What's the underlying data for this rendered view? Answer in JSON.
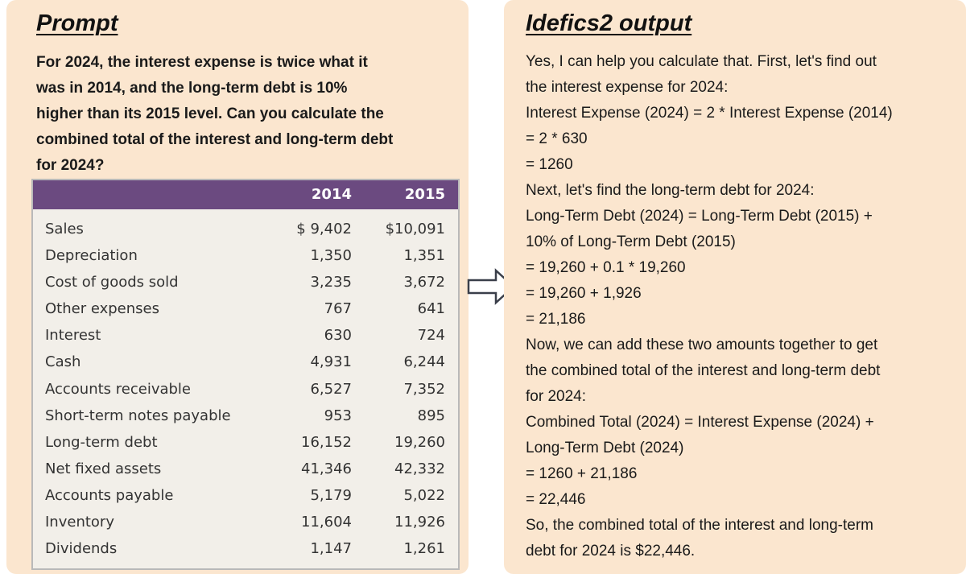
{
  "prompt": {
    "title": "Prompt",
    "lines": [
      "For 2024, the interest expense is twice what it",
      "was in 2014, and the long-term debt is 10%",
      "higher than its 2015 level. Can you calculate the",
      "combined total of the interest and long-term debt",
      "for 2024?"
    ]
  },
  "table": {
    "header_color": "#6b4a80",
    "columns": [
      "2014",
      "2015"
    ],
    "rows": [
      {
        "label": "Sales",
        "v2014": "$ 9,402",
        "v2015": "$10,091"
      },
      {
        "label": "Depreciation",
        "v2014": "1,350",
        "v2015": "1,351"
      },
      {
        "label": "Cost of goods sold",
        "v2014": "3,235",
        "v2015": "3,672"
      },
      {
        "label": "Other expenses",
        "v2014": "767",
        "v2015": "641"
      },
      {
        "label": "Interest",
        "v2014": "630",
        "v2015": "724"
      },
      {
        "label": "Cash",
        "v2014": "4,931",
        "v2015": "6,244"
      },
      {
        "label": "Accounts receivable",
        "v2014": "6,527",
        "v2015": "7,352"
      },
      {
        "label": "Short-term notes payable",
        "v2014": "953",
        "v2015": "895"
      },
      {
        "label": "Long-term debt",
        "v2014": "16,152",
        "v2015": "19,260"
      },
      {
        "label": "Net fixed assets",
        "v2014": "41,346",
        "v2015": "42,332"
      },
      {
        "label": "Accounts payable",
        "v2014": "5,179",
        "v2015": "5,022"
      },
      {
        "label": "Inventory",
        "v2014": "11,604",
        "v2015": "11,926"
      },
      {
        "label": "Dividends",
        "v2014": "1,147",
        "v2015": "1,261"
      }
    ]
  },
  "arrow": {
    "icon": "right-arrow-icon"
  },
  "output": {
    "title": "Idefics2 output",
    "lines": [
      "Yes, I can help you calculate that. First, let's find out",
      "the interest expense for 2024:",
      "Interest Expense (2024) = 2 * Interest Expense (2014)",
      "= 2 * 630",
      "= 1260",
      "Next, let's find the long-term debt for 2024:",
      "Long-Term Debt (2024) = Long-Term Debt (2015) +",
      "10% of Long-Term Debt (2015)",
      "= 19,260 + 0.1 * 19,260",
      "= 19,260 + 1,926",
      "= 21,186",
      "Now, we can add these two amounts together to get",
      "the combined total of the interest and long-term debt",
      "for 2024:",
      "Combined Total (2024) = Interest Expense (2024) +",
      "Long-Term Debt (2024)",
      "= 1260 + 21,186",
      "= 22,446",
      "So, the combined total of the interest and long-term",
      "debt for 2024 is $22,446."
    ]
  },
  "colors": {
    "panel_bg": "#fbe6cf",
    "table_bg": "#f2efe9",
    "text": "#1a1a1a"
  }
}
